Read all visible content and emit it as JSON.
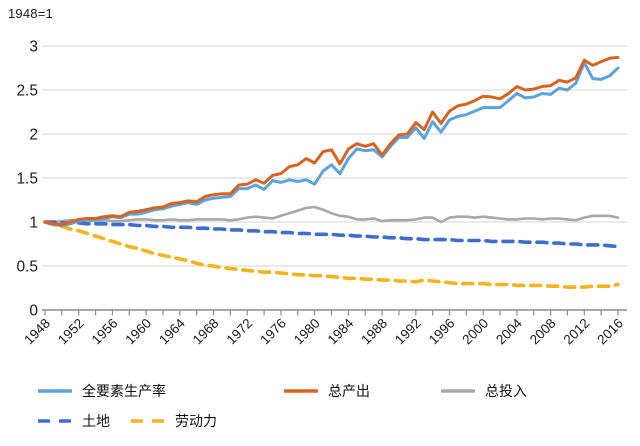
{
  "header": {
    "axis_note": "1948=1"
  },
  "chart_data": {
    "type": "line",
    "title": "",
    "xlabel": "",
    "ylabel": "",
    "x_start": 1948,
    "x_end": 2016,
    "x_label_step": 4,
    "x_tick_step": 2,
    "ylim": [
      0,
      3
    ],
    "yticks": [
      0,
      0.5,
      1,
      1.5,
      2,
      2.5,
      3
    ],
    "grid": "horizontal",
    "legend_position": "bottom-left-two-rows",
    "series": [
      {
        "key": "tfp",
        "name": "全要素生产率",
        "color": "#5BA3DC",
        "dash": "solid",
        "values": [
          1.0,
          0.97,
          0.96,
          0.98,
          1.01,
          1.03,
          1.03,
          1.04,
          1.06,
          1.05,
          1.09,
          1.09,
          1.11,
          1.14,
          1.15,
          1.18,
          1.2,
          1.22,
          1.2,
          1.25,
          1.27,
          1.28,
          1.29,
          1.38,
          1.38,
          1.42,
          1.37,
          1.47,
          1.45,
          1.48,
          1.46,
          1.48,
          1.43,
          1.58,
          1.65,
          1.55,
          1.72,
          1.83,
          1.81,
          1.82,
          1.74,
          1.86,
          1.96,
          1.96,
          2.07,
          1.95,
          2.14,
          2.02,
          2.16,
          2.2,
          2.22,
          2.26,
          2.3,
          2.3,
          2.3,
          2.38,
          2.46,
          2.41,
          2.42,
          2.46,
          2.45,
          2.52,
          2.5,
          2.58,
          2.81,
          2.63,
          2.62,
          2.66,
          2.75
        ]
      },
      {
        "key": "output",
        "name": "总产出",
        "color": "#D9621F",
        "dash": "solid",
        "values": [
          1.0,
          0.98,
          0.97,
          1.0,
          1.03,
          1.04,
          1.04,
          1.06,
          1.07,
          1.06,
          1.11,
          1.12,
          1.14,
          1.16,
          1.17,
          1.21,
          1.22,
          1.24,
          1.23,
          1.29,
          1.31,
          1.32,
          1.32,
          1.42,
          1.43,
          1.48,
          1.44,
          1.53,
          1.55,
          1.63,
          1.65,
          1.72,
          1.67,
          1.8,
          1.82,
          1.66,
          1.83,
          1.89,
          1.86,
          1.89,
          1.76,
          1.89,
          1.99,
          2.0,
          2.13,
          2.05,
          2.25,
          2.12,
          2.26,
          2.32,
          2.34,
          2.38,
          2.43,
          2.42,
          2.4,
          2.46,
          2.54,
          2.5,
          2.51,
          2.54,
          2.55,
          2.61,
          2.59,
          2.64,
          2.84,
          2.78,
          2.82,
          2.86,
          2.87
        ]
      },
      {
        "key": "input",
        "name": "总投入",
        "color": "#A8A8A8",
        "dash": "solid",
        "values": [
          1.0,
          1.0,
          1.01,
          1.02,
          1.02,
          1.01,
          1.01,
          1.02,
          1.01,
          1.01,
          1.02,
          1.03,
          1.03,
          1.02,
          1.02,
          1.03,
          1.02,
          1.02,
          1.03,
          1.03,
          1.03,
          1.03,
          1.02,
          1.03,
          1.05,
          1.06,
          1.05,
          1.04,
          1.07,
          1.1,
          1.13,
          1.16,
          1.17,
          1.14,
          1.1,
          1.07,
          1.06,
          1.03,
          1.03,
          1.04,
          1.01,
          1.02,
          1.02,
          1.02,
          1.03,
          1.05,
          1.05,
          1.0,
          1.05,
          1.06,
          1.06,
          1.05,
          1.06,
          1.05,
          1.04,
          1.03,
          1.03,
          1.04,
          1.04,
          1.03,
          1.04,
          1.04,
          1.03,
          1.02,
          1.05,
          1.07,
          1.07,
          1.07,
          1.05
        ]
      },
      {
        "key": "land",
        "name": "土地",
        "color": "#3E6DD0",
        "dash": "dashed",
        "values": [
          1.0,
          1.0,
          0.99,
          0.99,
          0.99,
          0.98,
          0.98,
          0.98,
          0.97,
          0.97,
          0.97,
          0.96,
          0.96,
          0.95,
          0.95,
          0.94,
          0.94,
          0.94,
          0.93,
          0.93,
          0.92,
          0.92,
          0.91,
          0.91,
          0.9,
          0.9,
          0.89,
          0.89,
          0.88,
          0.88,
          0.87,
          0.87,
          0.86,
          0.86,
          0.86,
          0.85,
          0.85,
          0.84,
          0.84,
          0.83,
          0.83,
          0.82,
          0.82,
          0.81,
          0.81,
          0.8,
          0.8,
          0.8,
          0.8,
          0.79,
          0.79,
          0.79,
          0.79,
          0.78,
          0.78,
          0.78,
          0.78,
          0.77,
          0.77,
          0.77,
          0.76,
          0.76,
          0.75,
          0.75,
          0.74,
          0.74,
          0.74,
          0.73,
          0.72
        ]
      },
      {
        "key": "labor",
        "name": "劳动力",
        "color": "#F2B41C",
        "dash": "dashed",
        "values": [
          1.0,
          0.97,
          0.95,
          0.92,
          0.9,
          0.87,
          0.84,
          0.81,
          0.78,
          0.75,
          0.72,
          0.7,
          0.67,
          0.64,
          0.62,
          0.6,
          0.58,
          0.56,
          0.53,
          0.51,
          0.5,
          0.48,
          0.47,
          0.46,
          0.45,
          0.44,
          0.43,
          0.43,
          0.42,
          0.41,
          0.4,
          0.4,
          0.39,
          0.39,
          0.38,
          0.37,
          0.36,
          0.36,
          0.35,
          0.35,
          0.34,
          0.34,
          0.33,
          0.33,
          0.32,
          0.34,
          0.33,
          0.32,
          0.31,
          0.3,
          0.3,
          0.3,
          0.3,
          0.29,
          0.29,
          0.29,
          0.28,
          0.28,
          0.28,
          0.28,
          0.27,
          0.27,
          0.26,
          0.26,
          0.26,
          0.27,
          0.27,
          0.27,
          0.29
        ]
      }
    ],
    "draw_order": [
      "input",
      "land",
      "labor",
      "tfp",
      "output"
    ]
  }
}
